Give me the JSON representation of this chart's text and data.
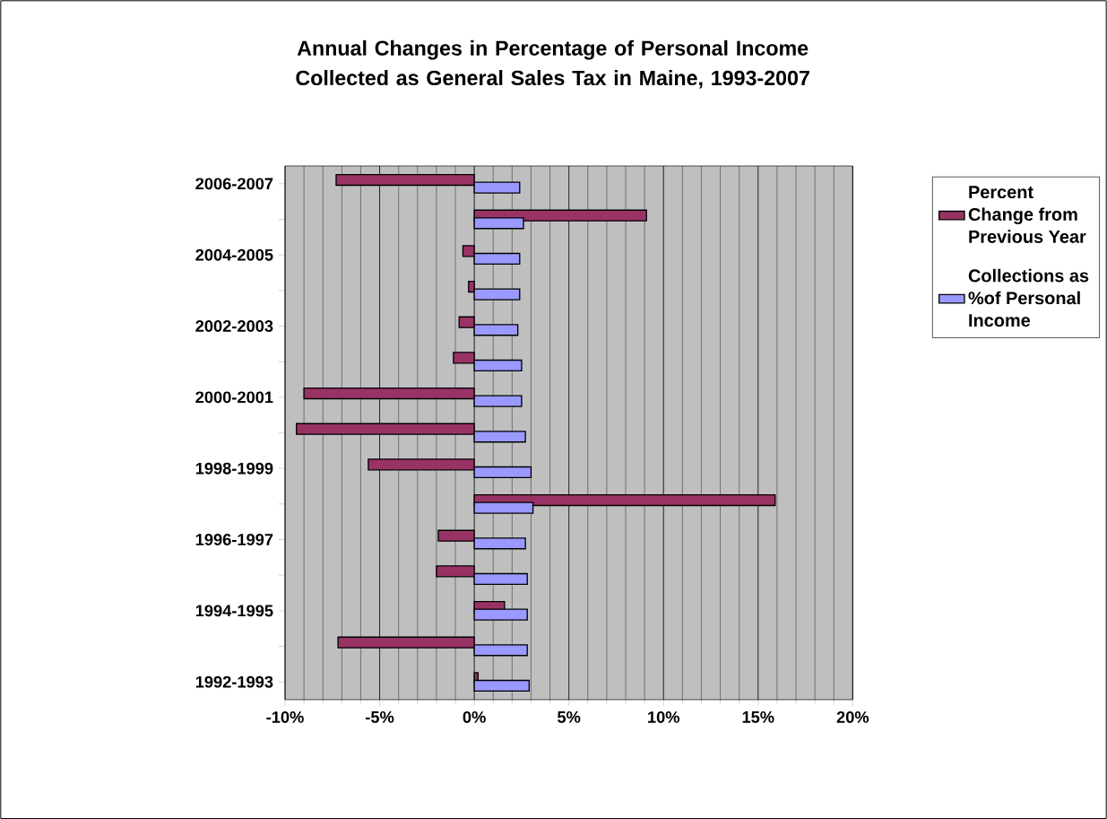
{
  "chart_data": {
    "type": "bar",
    "orientation": "horizontal",
    "title": "Annual Changes in Percentage of Personal Income Collected as General Sales Tax in Maine, 1993-2007",
    "categories": [
      "2006-2007",
      null,
      "2004-2005",
      null,
      "2002-2003",
      null,
      "2000-2001",
      null,
      "1998-1999",
      null,
      "1996-1997",
      null,
      "1994-1995",
      null,
      "1992-1993"
    ],
    "series": [
      {
        "name": "Percent Change from Previous Year",
        "color": "#993366",
        "values": [
          -7.3,
          9.1,
          -0.6,
          -0.3,
          -0.8,
          -1.1,
          -9.0,
          -9.4,
          -5.6,
          15.9,
          -1.9,
          -2.0,
          1.6,
          -7.2,
          0.2
        ]
      },
      {
        "name": "Collections as %of Personal Income",
        "color": "#9999ff",
        "values": [
          2.4,
          2.6,
          2.4,
          2.4,
          2.3,
          2.5,
          2.5,
          2.7,
          3.0,
          3.1,
          2.7,
          2.8,
          2.8,
          2.8,
          2.9
        ]
      }
    ],
    "xlim": [
      -10,
      20
    ],
    "xticks": [
      {
        "value": -10,
        "label": "-10%"
      },
      {
        "value": -5,
        "label": "-5%"
      },
      {
        "value": 0,
        "label": "0%"
      },
      {
        "value": 5,
        "label": "5%"
      },
      {
        "value": 10,
        "label": "10%"
      },
      {
        "value": 15,
        "label": "15%"
      },
      {
        "value": 20,
        "label": "20%"
      }
    ],
    "grid": "x",
    "legend": "right"
  }
}
